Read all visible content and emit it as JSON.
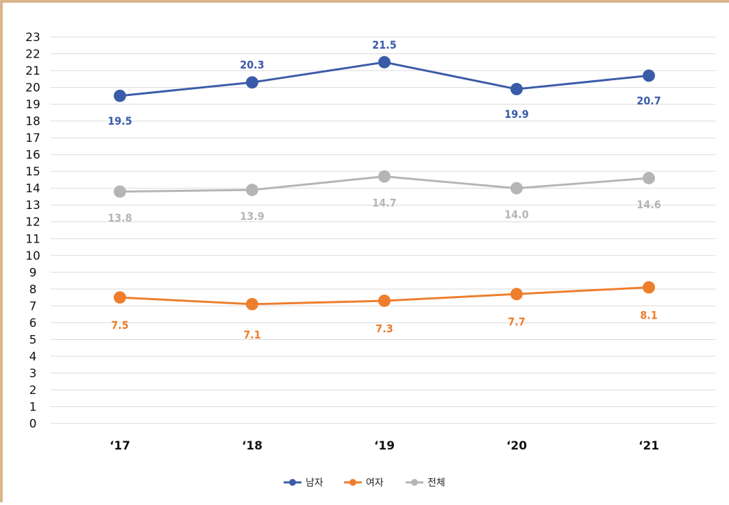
{
  "chart_data": {
    "type": "line",
    "categories": [
      "‘17",
      "‘18",
      "‘19",
      "‘20",
      "‘21"
    ],
    "series": [
      {
        "name": "남자",
        "color": "#3a5ba8",
        "values": [
          19.5,
          20.3,
          21.5,
          19.9,
          20.7
        ],
        "labels": [
          "19.5",
          "20.3",
          "21.5",
          "19.9",
          "20.7"
        ]
      },
      {
        "name": "여자",
        "color": "#ee7d2c",
        "values": [
          7.5,
          7.1,
          7.3,
          7.7,
          8.1
        ],
        "labels": [
          "7.5",
          "7.1",
          "7.3",
          "7.7",
          "8.1"
        ]
      },
      {
        "name": "전체",
        "color": "#b5b5b5",
        "values": [
          13.8,
          13.9,
          14.7,
          14.0,
          14.6
        ],
        "labels": [
          "13.8",
          "13.9",
          "14.7",
          "14.0",
          "14.6"
        ]
      }
    ],
    "ylim": [
      0,
      23
    ],
    "yticks": [
      "0",
      "1",
      "2",
      "3",
      "4",
      "5",
      "6",
      "7",
      "8",
      "9",
      "10",
      "11",
      "12",
      "13",
      "14",
      "15",
      "16",
      "17",
      "18",
      "19",
      "20",
      "21",
      "22",
      "23"
    ],
    "grid": true,
    "legend_position": "bottom-center",
    "title": "",
    "xlabel": "",
    "ylabel": ""
  }
}
